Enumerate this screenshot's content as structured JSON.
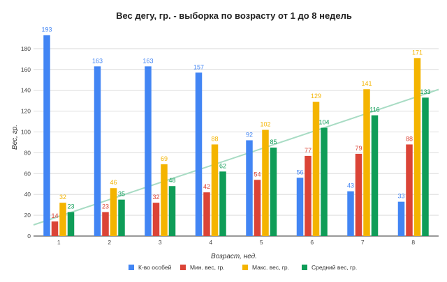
{
  "chart_data": {
    "type": "bar",
    "title": "Вес дегу, гр. - выборка по возрасту от 1 до 8 недель",
    "xlabel": "Возраст, нед.",
    "ylabel": "Вес, гр.",
    "ylim": [
      0,
      200
    ],
    "yticks": [
      0,
      20,
      40,
      60,
      80,
      100,
      120,
      140,
      160,
      180
    ],
    "grid": true,
    "legend_position": "bottom",
    "categories": [
      "1",
      "2",
      "3",
      "4",
      "5",
      "6",
      "7",
      "8"
    ],
    "series": [
      {
        "name": "К-во особей",
        "color": "#4285f4",
        "values": [
          193,
          163,
          163,
          157,
          92,
          56,
          43,
          33
        ]
      },
      {
        "name": "Мин. вес, гр.",
        "color": "#db4437",
        "values": [
          14,
          23,
          32,
          42,
          54,
          77,
          79,
          88
        ]
      },
      {
        "name": "Макс. вес, гр.",
        "color": "#f4b400",
        "values": [
          32,
          46,
          69,
          88,
          102,
          129,
          141,
          171
        ]
      },
      {
        "name": "Средний вес, гр.",
        "color": "#0f9d58",
        "values": [
          23,
          35,
          48,
          62,
          85,
          104,
          116,
          133
        ]
      }
    ],
    "trendline": {
      "series": "Средний вес, гр.",
      "color": "#a8dcc4"
    }
  }
}
